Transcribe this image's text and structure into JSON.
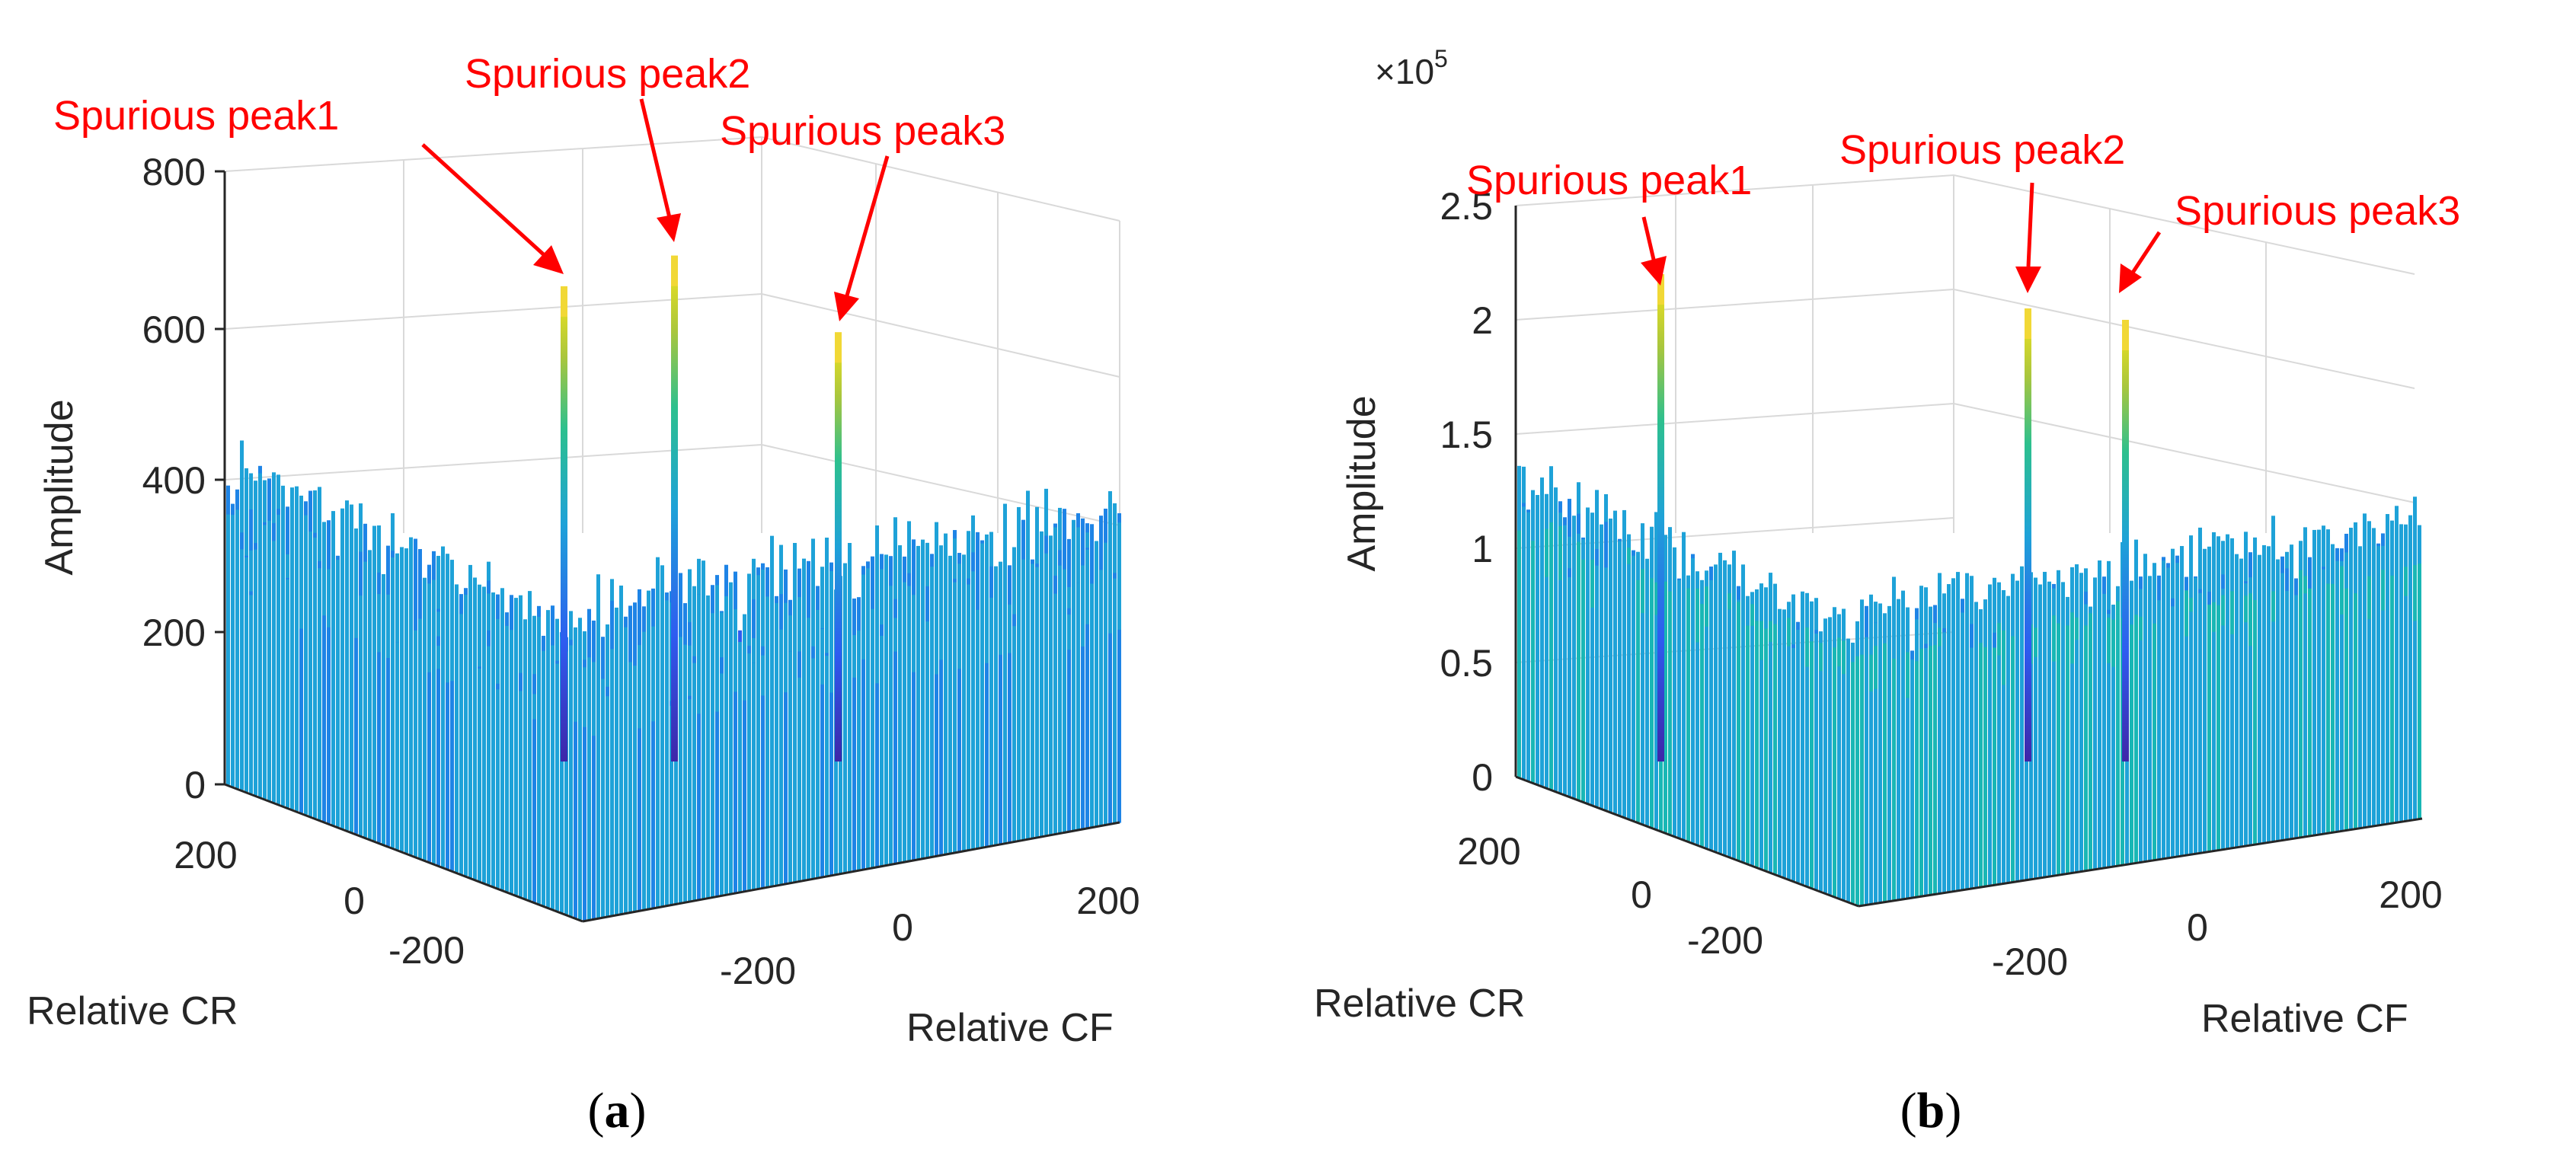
{
  "chart_data": [
    {
      "panel": "a",
      "type": "surface3d",
      "caption": "a",
      "zlabel": "Amplitude",
      "xlabel": "Relative CF",
      "ylabel": "Relative CR",
      "zticks": [
        "800",
        "600",
        "400",
        "200",
        "0"
      ],
      "zlim": [
        0,
        800
      ],
      "xticks": [
        "-200",
        "0",
        "200"
      ],
      "yticks": [
        "200",
        "0",
        "-200"
      ],
      "noise_floor": [
        250,
        480
      ],
      "annotations": [
        {
          "label": "Spurious peak1",
          "value": 650
        },
        {
          "label": "Spurious peak2",
          "value": 690
        },
        {
          "label": "Spurious peak3",
          "value": 590
        }
      ]
    },
    {
      "panel": "b",
      "type": "surface3d",
      "caption": "b",
      "exponent_base": "×10",
      "exponent_power": "5",
      "zlabel": "Amplitude",
      "xlabel": "Relative CF",
      "ylabel": "Relative CR",
      "zticks": [
        "2.5",
        "2",
        "1.5",
        "1",
        "0.5",
        "0"
      ],
      "zlim": [
        0,
        2.5
      ],
      "xticks": [
        "-200",
        "0",
        "200"
      ],
      "yticks": [
        "200",
        "0",
        "-200"
      ],
      "noise_floor": [
        0.9,
        1.6
      ],
      "annotations": [
        {
          "label": "Spurious peak1",
          "value": 2.2
        },
        {
          "label": "Spurious peak2",
          "value": 2.05
        },
        {
          "label": "Spurious peak3",
          "value": 2.0
        }
      ]
    }
  ]
}
